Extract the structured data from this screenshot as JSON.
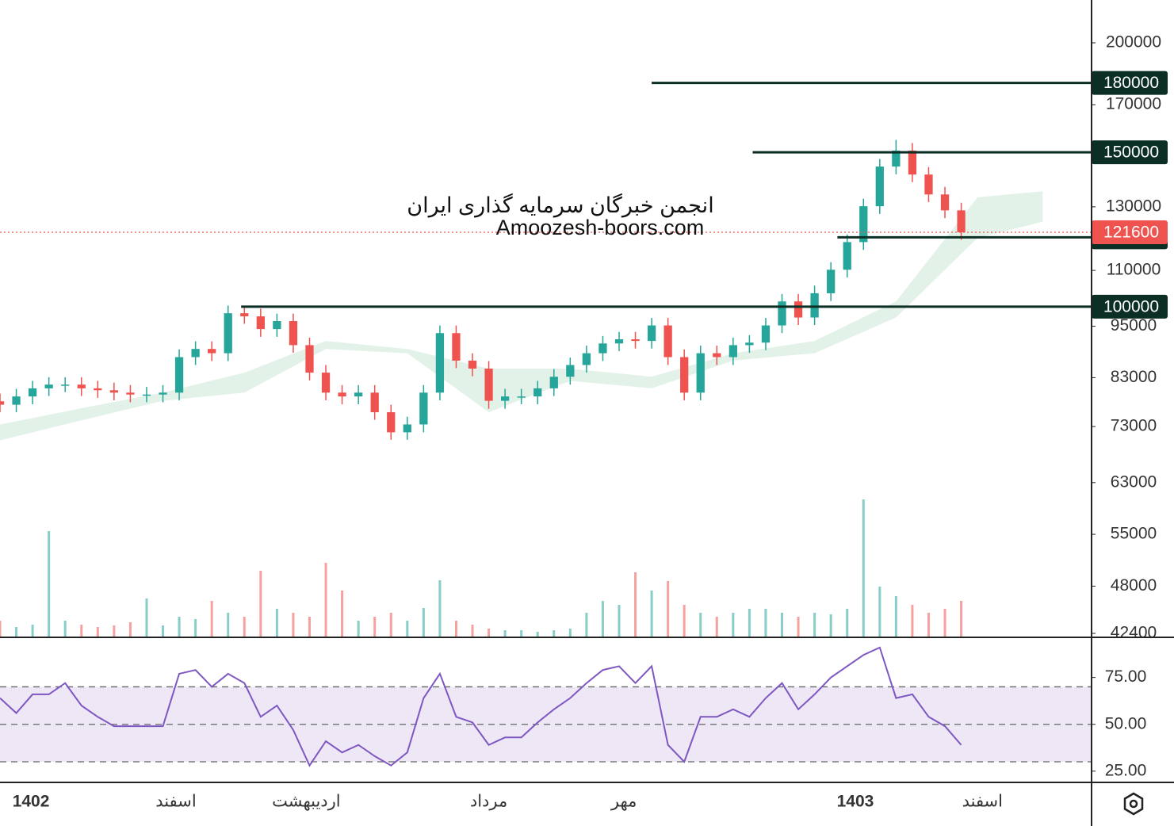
{
  "chart_data": [
    {
      "type": "candlestick",
      "annotations": [
        "انجمن خبرگان سرمایه گذاری ایران",
        "Amoozesh-boors.com"
      ],
      "x": [
        0,
        1,
        2,
        3,
        4,
        5,
        6,
        7,
        8,
        9,
        10,
        11,
        12,
        13,
        14,
        15,
        16,
        17,
        18,
        19,
        20,
        21,
        22,
        23,
        24,
        25,
        26,
        27,
        28,
        29,
        30,
        31,
        32,
        33,
        34,
        35,
        36,
        37,
        38,
        39,
        40,
        41,
        42,
        43,
        44,
        45,
        46,
        47,
        48,
        49,
        50,
        51,
        52,
        53,
        54,
        55,
        56,
        57,
        58,
        59
      ],
      "open": [
        78000,
        77300,
        79000,
        80700,
        81500,
        81500,
        80700,
        80300,
        79800,
        79400,
        79400,
        79800,
        87600,
        89500,
        88500,
        98300,
        97500,
        94300,
        96300,
        90400,
        84100,
        79800,
        79000,
        79800,
        75800,
        71900,
        73400,
        79800,
        93300,
        86800,
        85000,
        78100,
        79000,
        79000,
        80700,
        83200,
        85800,
        88500,
        90800,
        91800,
        91400,
        95200,
        87600,
        79800,
        88500,
        87600,
        90400,
        91000,
        95200,
        101400,
        97200,
        103600,
        110200,
        118500,
        130200,
        144500,
        150700,
        141500,
        134300,
        128800
      ],
      "high": [
        79600,
        80600,
        82300,
        83100,
        83100,
        83100,
        82300,
        81900,
        81400,
        81000,
        81400,
        89400,
        91300,
        91300,
        100300,
        100300,
        99500,
        98200,
        98200,
        92200,
        85800,
        81400,
        81400,
        81400,
        77300,
        74900,
        81400,
        95200,
        95200,
        88500,
        86700,
        80600,
        80600,
        82300,
        84900,
        87500,
        90300,
        92600,
        93600,
        93600,
        97100,
        97100,
        89400,
        90300,
        90300,
        92200,
        92800,
        97100,
        103400,
        103400,
        105700,
        112400,
        120900,
        132800,
        147400,
        155000,
        153700,
        144300,
        137000,
        131400
      ],
      "low": [
        75800,
        75800,
        77400,
        79100,
        79900,
        79100,
        78700,
        78200,
        77800,
        77800,
        77800,
        78200,
        85800,
        86700,
        86700,
        95600,
        92400,
        92400,
        88600,
        82400,
        78200,
        77400,
        77400,
        74300,
        70500,
        70500,
        71900,
        78200,
        85100,
        83300,
        76500,
        76500,
        77400,
        77400,
        79100,
        81500,
        84100,
        86700,
        89000,
        89600,
        89600,
        85800,
        78200,
        78200,
        85800,
        85800,
        88600,
        89200,
        93300,
        95300,
        95300,
        101500,
        108000,
        116100,
        127600,
        141600,
        138700,
        131600,
        126200,
        119200
      ],
      "close": [
        77300,
        79000,
        80700,
        81500,
        81500,
        80700,
        80300,
        79800,
        79400,
        79400,
        79800,
        87600,
        89500,
        88500,
        98300,
        97500,
        94300,
        96300,
        90400,
        84100,
        79800,
        79000,
        79800,
        75800,
        71900,
        73400,
        79800,
        93300,
        86800,
        85000,
        78100,
        79000,
        79000,
        80700,
        83200,
        85800,
        88500,
        90800,
        91800,
        91400,
        95200,
        87600,
        79800,
        88500,
        87600,
        90400,
        91000,
        95200,
        101400,
        97200,
        103600,
        110200,
        118500,
        130200,
        144500,
        150700,
        141500,
        134300,
        128800,
        121600
      ],
      "up_color": "#26a69a",
      "down_color": "#ef5350",
      "volume": [
        20,
        12,
        15,
        133,
        20,
        15,
        12,
        14,
        18,
        48,
        14,
        25,
        22,
        45,
        30,
        25,
        83,
        35,
        30,
        25,
        93,
        58,
        20,
        25,
        30,
        20,
        36,
        71,
        20,
        15,
        10,
        8,
        8,
        6,
        8,
        10,
        30,
        45,
        40,
        81,
        58,
        70,
        40,
        30,
        25,
        30,
        35,
        35,
        30,
        25,
        30,
        28,
        35,
        173,
        63,
        51,
        40,
        30,
        35,
        45
      ],
      "volume_lim": [
        0,
        200
      ],
      "cloud": {
        "x": [
          0,
          5,
          10,
          15,
          20,
          25,
          30,
          35,
          40,
          45,
          50,
          55,
          60,
          64
        ],
        "upper": [
          73400,
          76600,
          79800,
          84100,
          91400,
          89500,
          85000,
          85000,
          83200,
          88500,
          91400,
          101400,
          133300,
          135400
        ],
        "lower": [
          70400,
          74200,
          78100,
          79800,
          89500,
          88500,
          75800,
          82300,
          80700,
          86800,
          88500,
          97200,
          119800,
          125000
        ],
        "color": "#e3f2e8"
      },
      "levels": [
        {
          "value": 180000,
          "from": 40
        },
        {
          "value": 150000,
          "from": 46.2
        },
        {
          "value": 120000,
          "from": 51.4
        },
        {
          "value": 100000,
          "from": 14.8
        }
      ],
      "level_color": "#0b2e25",
      "last_price": 121600,
      "last_price_color": "#ef5350",
      "xlim": [
        0,
        67
      ],
      "ylim": [
        42050,
        223800
      ],
      "log_scale": true,
      "yticks": [
        200000,
        170000,
        130000,
        110000,
        95000,
        83000,
        73000,
        63000,
        55000,
        48000,
        42400
      ]
    },
    {
      "type": "line",
      "x": [
        0,
        1,
        2,
        3,
        4,
        5,
        6,
        7,
        8,
        9,
        10,
        11,
        12,
        13,
        14,
        15,
        16,
        17,
        18,
        19,
        20,
        21,
        22,
        23,
        24,
        25,
        26,
        27,
        28,
        29,
        30,
        31,
        32,
        33,
        34,
        35,
        36,
        37,
        38,
        39,
        40,
        41,
        42,
        43,
        44,
        45,
        46,
        47,
        48,
        49,
        50,
        51,
        52,
        53,
        54,
        55,
        56,
        57,
        58,
        59
      ],
      "values": [
        64,
        56,
        66,
        66,
        72,
        60,
        54,
        49,
        49,
        49,
        49,
        77,
        79,
        70,
        77,
        72,
        54,
        60,
        47,
        28,
        41,
        35,
        39,
        33,
        28,
        35,
        64,
        77,
        54,
        51,
        39,
        43,
        43,
        51,
        58,
        64,
        72,
        79,
        81,
        72,
        81,
        39,
        30,
        54,
        54,
        58,
        54,
        64,
        72,
        58,
        66,
        75,
        81,
        87,
        91,
        64,
        66,
        54,
        49,
        39
      ],
      "color": "#7e57c2",
      "band": [
        30,
        70
      ],
      "band_color": "#ede7f6",
      "hlines": [
        70,
        50,
        30
      ],
      "xlim": [
        0,
        67
      ],
      "ylim": [
        19,
        96
      ],
      "yticks": [
        {
          "value": 75,
          "label": "75.00"
        },
        {
          "value": 50,
          "label": "50.00"
        },
        {
          "value": 25,
          "label": "25.00"
        }
      ],
      "xticks": [
        {
          "value": 1.9,
          "label": "1402"
        },
        {
          "value": 10.8,
          "label": "اسفند"
        },
        {
          "value": 18.8,
          "label": "اردیبهشت"
        },
        {
          "value": 30,
          "label": "مرداد"
        },
        {
          "value": 38.3,
          "label": "مهر"
        },
        {
          "value": 52.5,
          "label": "1403"
        },
        {
          "value": 60.3,
          "label": "اسفند"
        }
      ]
    }
  ]
}
